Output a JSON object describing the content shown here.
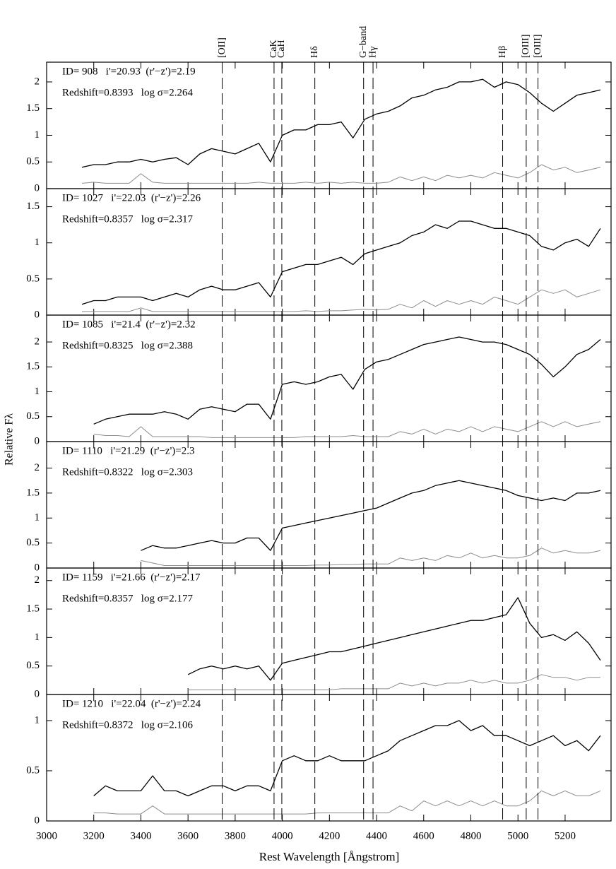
{
  "figure": {
    "xlabel": "Rest Wavelength [Ångstrom]",
    "ylabel": "Relative Fλ",
    "xlim": [
      3000,
      5395
    ],
    "xticks": [
      3000,
      3200,
      3400,
      3600,
      3800,
      4000,
      4200,
      4400,
      4600,
      4800,
      5000,
      5200
    ],
    "lines": [
      {
        "label": "[OII]",
        "x": 3745
      },
      {
        "label": "CaK",
        "x": 3965
      },
      {
        "label": "CaH",
        "x": 3998
      },
      {
        "label": "Hδ",
        "x": 4138
      },
      {
        "label": "G−band",
        "x": 4345
      },
      {
        "label": "Hγ",
        "x": 4385
      },
      {
        "label": "Hβ",
        "x": 4935
      },
      {
        "label": "[OIII]",
        "x": 5035
      },
      {
        "label": "[OIII]",
        "x": 5085
      }
    ]
  },
  "chart_data": [
    {
      "type": "line",
      "annotations": [
        "ID= 908   i'=20.93  (r'−z')=2.19",
        "Redshift=0.8393   log σ=2.264"
      ],
      "x": [
        3150,
        3200,
        3250,
        3300,
        3350,
        3400,
        3450,
        3500,
        3550,
        3600,
        3650,
        3700,
        3750,
        3800,
        3850,
        3900,
        3950,
        4000,
        4050,
        4100,
        4150,
        4200,
        4250,
        4300,
        4350,
        4400,
        4450,
        4500,
        4550,
        4600,
        4650,
        4700,
        4750,
        4800,
        4850,
        4900,
        4950,
        5000,
        5050,
        5100,
        5150,
        5200,
        5250,
        5300,
        5350
      ],
      "ylim": [
        0,
        2.37
      ],
      "yticks": [
        0,
        0.5,
        1,
        1.5,
        2
      ],
      "series": [
        {
          "color": "#000000",
          "values": [
            0.4,
            0.45,
            0.45,
            0.5,
            0.5,
            0.55,
            0.5,
            0.55,
            0.58,
            0.45,
            0.65,
            0.75,
            0.7,
            0.65,
            0.75,
            0.85,
            0.5,
            1.0,
            1.1,
            1.1,
            1.2,
            1.2,
            1.25,
            0.95,
            1.3,
            1.4,
            1.45,
            1.55,
            1.7,
            1.75,
            1.85,
            1.9,
            2.0,
            2.0,
            2.05,
            1.9,
            2.0,
            1.95,
            1.8,
            1.6,
            1.45,
            1.6,
            1.75,
            1.8,
            1.85
          ]
        },
        {
          "color": "#8c8c8c",
          "values": [
            0.1,
            0.12,
            0.1,
            0.1,
            0.1,
            0.28,
            0.12,
            0.1,
            0.1,
            0.1,
            0.1,
            0.1,
            0.1,
            0.1,
            0.1,
            0.12,
            0.1,
            0.1,
            0.1,
            0.12,
            0.1,
            0.12,
            0.1,
            0.12,
            0.1,
            0.1,
            0.12,
            0.22,
            0.15,
            0.22,
            0.15,
            0.25,
            0.2,
            0.25,
            0.2,
            0.3,
            0.25,
            0.2,
            0.3,
            0.45,
            0.35,
            0.4,
            0.3,
            0.35,
            0.4
          ]
        }
      ]
    },
    {
      "type": "line",
      "annotations": [
        "ID= 1027   i'=22.03  (r'−z')=2.26",
        "Redshift=0.8357   log σ=2.317"
      ],
      "x": [
        3150,
        3200,
        3250,
        3300,
        3350,
        3400,
        3450,
        3500,
        3550,
        3600,
        3650,
        3700,
        3750,
        3800,
        3850,
        3900,
        3950,
        4000,
        4050,
        4100,
        4150,
        4200,
        4250,
        4300,
        4350,
        4400,
        4450,
        4500,
        4550,
        4600,
        4650,
        4700,
        4750,
        4800,
        4850,
        4900,
        4950,
        5000,
        5050,
        5100,
        5150,
        5200,
        5250,
        5300,
        5350
      ],
      "ylim": [
        0,
        1.75
      ],
      "yticks": [
        0,
        0.5,
        1,
        1.5
      ],
      "series": [
        {
          "color": "#000000",
          "values": [
            0.15,
            0.2,
            0.2,
            0.25,
            0.25,
            0.25,
            0.2,
            0.25,
            0.3,
            0.25,
            0.35,
            0.4,
            0.35,
            0.35,
            0.4,
            0.45,
            0.25,
            0.6,
            0.65,
            0.7,
            0.7,
            0.75,
            0.8,
            0.7,
            0.85,
            0.9,
            0.95,
            1.0,
            1.1,
            1.15,
            1.25,
            1.2,
            1.3,
            1.3,
            1.25,
            1.2,
            1.2,
            1.15,
            1.1,
            0.95,
            0.9,
            1.0,
            1.05,
            0.95,
            1.2
          ]
        },
        {
          "color": "#8c8c8c",
          "values": [
            0.05,
            0.05,
            0.05,
            0.05,
            0.05,
            0.1,
            0.05,
            0.05,
            0.05,
            0.05,
            0.05,
            0.05,
            0.05,
            0.05,
            0.05,
            0.05,
            0.05,
            0.05,
            0.05,
            0.06,
            0.05,
            0.06,
            0.06,
            0.07,
            0.08,
            0.07,
            0.08,
            0.15,
            0.1,
            0.2,
            0.12,
            0.2,
            0.15,
            0.2,
            0.15,
            0.25,
            0.2,
            0.15,
            0.25,
            0.35,
            0.3,
            0.35,
            0.25,
            0.3,
            0.35
          ]
        }
      ]
    },
    {
      "type": "line",
      "annotations": [
        "ID= 1085   i'=21.4  (r'−z')=2.32",
        "Redshift=0.8325   log σ=2.388"
      ],
      "x": [
        3150,
        3200,
        3250,
        3300,
        3350,
        3400,
        3450,
        3500,
        3550,
        3600,
        3650,
        3700,
        3750,
        3800,
        3850,
        3900,
        3950,
        4000,
        4050,
        4100,
        4150,
        4200,
        4250,
        4300,
        4350,
        4400,
        4450,
        4500,
        4550,
        4600,
        4650,
        4700,
        4750,
        4800,
        4850,
        4900,
        4950,
        5000,
        5050,
        5100,
        5150,
        5200,
        5250,
        5300,
        5350
      ],
      "ylim": [
        0,
        2.54
      ],
      "yticks": [
        0,
        0.5,
        1,
        1.5,
        2
      ],
      "series": [
        {
          "color": "#000000",
          "values": [
            null,
            0.35,
            0.45,
            0.5,
            0.55,
            0.55,
            0.55,
            0.6,
            0.55,
            0.45,
            0.65,
            0.7,
            0.65,
            0.6,
            0.75,
            0.75,
            0.45,
            1.15,
            1.2,
            1.15,
            1.2,
            1.3,
            1.35,
            1.05,
            1.45,
            1.6,
            1.65,
            1.75,
            1.85,
            1.95,
            2.0,
            2.05,
            2.1,
            2.05,
            2.0,
            2.0,
            1.95,
            1.85,
            1.75,
            1.55,
            1.3,
            1.5,
            1.75,
            1.85,
            2.05
          ]
        },
        {
          "color": "#8c8c8c",
          "values": [
            null,
            0.15,
            0.12,
            0.12,
            0.1,
            0.3,
            0.1,
            0.1,
            0.1,
            0.1,
            0.1,
            0.08,
            0.08,
            0.08,
            0.08,
            0.08,
            0.08,
            0.08,
            0.08,
            0.1,
            0.1,
            0.1,
            0.1,
            0.12,
            0.1,
            0.1,
            0.1,
            0.2,
            0.15,
            0.25,
            0.15,
            0.25,
            0.2,
            0.3,
            0.2,
            0.3,
            0.25,
            0.2,
            0.3,
            0.4,
            0.3,
            0.4,
            0.3,
            0.35,
            0.4
          ]
        }
      ]
    },
    {
      "type": "line",
      "annotations": [
        "ID= 1110   i'=21.29  (r'−z')=2.3",
        "Redshift=0.8322   log σ=2.303"
      ],
      "x": [
        3150,
        3200,
        3250,
        3300,
        3350,
        3400,
        3450,
        3500,
        3550,
        3600,
        3650,
        3700,
        3750,
        3800,
        3850,
        3900,
        3950,
        4000,
        4050,
        4100,
        4150,
        4200,
        4250,
        4300,
        4350,
        4400,
        4450,
        4500,
        4550,
        4600,
        4650,
        4700,
        4750,
        4800,
        4850,
        4900,
        4950,
        5000,
        5050,
        5100,
        5150,
        5200,
        5250,
        5300,
        5350
      ],
      "ylim": [
        0,
        2.53
      ],
      "yticks": [
        0,
        0.5,
        1,
        1.5,
        2
      ],
      "series": [
        {
          "color": "#000000",
          "values": [
            null,
            null,
            null,
            null,
            null,
            0.35,
            0.45,
            0.4,
            0.4,
            0.45,
            0.5,
            0.55,
            0.5,
            0.5,
            0.6,
            0.6,
            0.35,
            0.8,
            0.85,
            0.9,
            0.95,
            1.0,
            1.05,
            1.1,
            1.15,
            1.2,
            1.3,
            1.4,
            1.5,
            1.55,
            1.65,
            1.7,
            1.75,
            1.7,
            1.65,
            1.6,
            1.55,
            1.45,
            1.4,
            1.35,
            1.4,
            1.35,
            1.5,
            1.5,
            1.55
          ]
        },
        {
          "color": "#8c8c8c",
          "values": [
            null,
            null,
            null,
            null,
            null,
            0.15,
            0.1,
            0.05,
            0.05,
            0.05,
            0.05,
            0.05,
            0.05,
            0.05,
            0.05,
            0.05,
            0.05,
            0.05,
            0.05,
            0.05,
            0.06,
            0.06,
            0.07,
            0.07,
            0.08,
            0.08,
            0.08,
            0.2,
            0.15,
            0.2,
            0.15,
            0.25,
            0.2,
            0.3,
            0.2,
            0.25,
            0.2,
            0.2,
            0.25,
            0.4,
            0.3,
            0.35,
            0.3,
            0.3,
            0.35
          ]
        }
      ]
    },
    {
      "type": "line",
      "annotations": [
        "ID= 1159   i'=21.66  (r'−z')=2.17",
        "Redshift=0.8357   log σ=2.177"
      ],
      "x": [
        3150,
        3200,
        3250,
        3300,
        3350,
        3400,
        3450,
        3500,
        3550,
        3600,
        3650,
        3700,
        3750,
        3800,
        3850,
        3900,
        3950,
        4000,
        4050,
        4100,
        4150,
        4200,
        4250,
        4300,
        4350,
        4400,
        4450,
        4500,
        4550,
        4600,
        4650,
        4700,
        4750,
        4800,
        4850,
        4900,
        4950,
        5000,
        5050,
        5100,
        5150,
        5200,
        5250,
        5300,
        5350
      ],
      "ylim": [
        0,
        2.22
      ],
      "yticks": [
        0,
        0.5,
        1,
        1.5,
        2
      ],
      "series": [
        {
          "color": "#000000",
          "values": [
            null,
            null,
            null,
            null,
            null,
            null,
            null,
            null,
            null,
            0.35,
            0.45,
            0.5,
            0.45,
            0.5,
            0.45,
            0.5,
            0.25,
            0.55,
            0.6,
            0.65,
            0.7,
            0.75,
            0.75,
            0.8,
            0.85,
            0.9,
            0.95,
            1.0,
            1.05,
            1.1,
            1.15,
            1.2,
            1.25,
            1.3,
            1.3,
            1.35,
            1.4,
            1.7,
            1.25,
            1.0,
            1.05,
            0.95,
            1.1,
            0.9,
            0.6
          ]
        },
        {
          "color": "#8c8c8c",
          "values": [
            null,
            null,
            null,
            null,
            null,
            null,
            null,
            null,
            null,
            0.08,
            0.08,
            0.08,
            0.08,
            0.08,
            0.08,
            0.08,
            0.08,
            0.08,
            0.08,
            0.08,
            0.08,
            0.08,
            0.1,
            0.1,
            0.1,
            0.1,
            0.1,
            0.2,
            0.15,
            0.2,
            0.15,
            0.2,
            0.2,
            0.25,
            0.2,
            0.25,
            0.2,
            0.2,
            0.25,
            0.35,
            0.3,
            0.3,
            0.25,
            0.3,
            0.3
          ]
        }
      ]
    },
    {
      "type": "line",
      "annotations": [
        "ID= 1210   i'=22.04  (r'−z')=2.24",
        "Redshift=0.8372   log σ=2.106"
      ],
      "x": [
        3150,
        3200,
        3250,
        3300,
        3350,
        3400,
        3450,
        3500,
        3550,
        3600,
        3650,
        3700,
        3750,
        3800,
        3850,
        3900,
        3950,
        4000,
        4050,
        4100,
        4150,
        4200,
        4250,
        4300,
        4350,
        4400,
        4450,
        4500,
        4550,
        4600,
        4650,
        4700,
        4750,
        4800,
        4850,
        4900,
        4950,
        5000,
        5050,
        5100,
        5150,
        5200,
        5250,
        5300,
        5350
      ],
      "ylim": [
        0,
        1.26
      ],
      "yticks": [
        0,
        0.5,
        1
      ],
      "series": [
        {
          "color": "#000000",
          "values": [
            null,
            0.25,
            0.35,
            0.3,
            0.3,
            0.3,
            0.45,
            0.3,
            0.3,
            0.25,
            0.3,
            0.35,
            0.35,
            0.3,
            0.35,
            0.35,
            0.3,
            0.6,
            0.65,
            0.6,
            0.6,
            0.65,
            0.6,
            0.6,
            0.6,
            0.65,
            0.7,
            0.8,
            0.85,
            0.9,
            0.95,
            0.95,
            1.0,
            0.9,
            0.95,
            0.85,
            0.85,
            0.8,
            0.75,
            0.8,
            0.85,
            0.75,
            0.8,
            0.7,
            0.85
          ]
        },
        {
          "color": "#8c8c8c",
          "values": [
            null,
            0.08,
            0.08,
            0.07,
            0.07,
            0.07,
            0.15,
            0.07,
            0.07,
            0.07,
            0.07,
            0.07,
            0.07,
            0.07,
            0.07,
            0.07,
            0.07,
            0.07,
            0.07,
            0.07,
            0.08,
            0.08,
            0.08,
            0.08,
            0.08,
            0.08,
            0.08,
            0.15,
            0.1,
            0.2,
            0.15,
            0.2,
            0.15,
            0.2,
            0.15,
            0.2,
            0.15,
            0.15,
            0.2,
            0.3,
            0.25,
            0.3,
            0.25,
            0.25,
            0.3
          ]
        }
      ]
    }
  ]
}
